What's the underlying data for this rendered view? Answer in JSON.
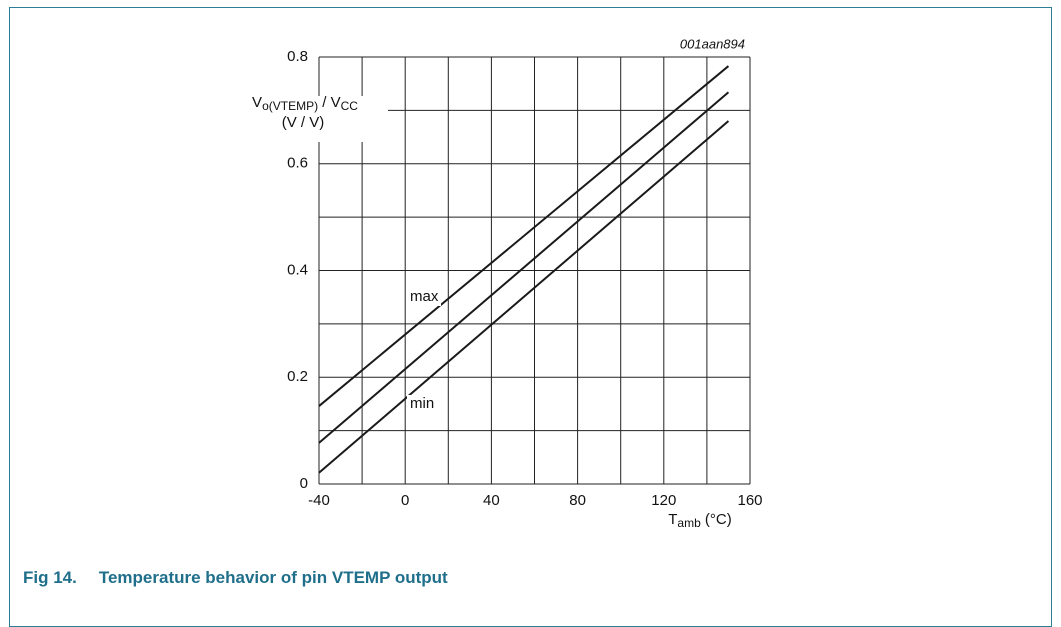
{
  "chart_data": {
    "type": "line",
    "code": "001aan894",
    "caption": {
      "number": "Fig 14.",
      "text": "Temperature behavior of pin VTEMP output"
    },
    "ylabel": {
      "symbol": "V",
      "symbol_sub": "o(VTEMP)",
      "divider": " / V",
      "divider_sub": "CC",
      "unit": "(V / V)"
    },
    "xlabel": {
      "symbol": "T",
      "symbol_sub": "amb",
      "unit": " (°C)"
    },
    "xlim": [
      -40,
      160
    ],
    "ylim": [
      0,
      0.8
    ],
    "xticks": [
      -40,
      0,
      40,
      80,
      120,
      160
    ],
    "yticks": [
      0,
      0.2,
      0.4,
      0.6,
      0.8
    ],
    "grid": true,
    "color": "#1a1a1a",
    "series": [
      {
        "name": "max",
        "x": [
          -40,
          150
        ],
        "values": [
          0.146,
          0.783
        ]
      },
      {
        "x": [
          -40,
          150
        ],
        "values": [
          0.077,
          0.734
        ]
      },
      {
        "name": "min",
        "x": [
          -40,
          150
        ],
        "values": [
          0.021,
          0.68
        ]
      }
    ]
  }
}
